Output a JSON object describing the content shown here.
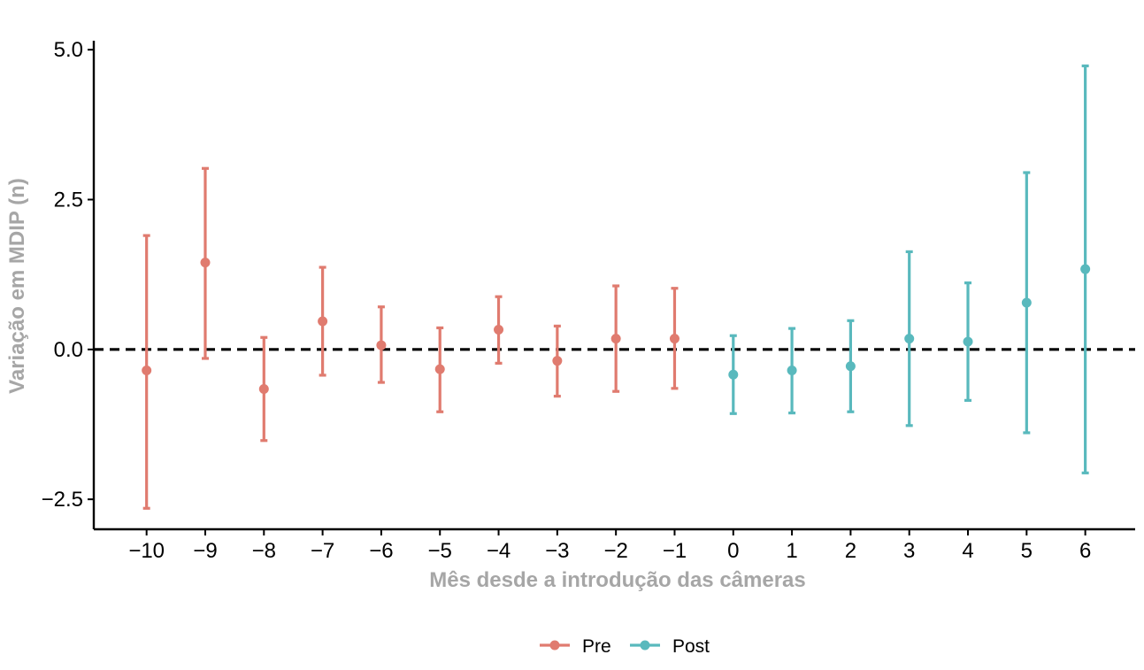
{
  "chart_data": {
    "type": "errorbar",
    "xlabel": "Mês desde a introdução das câmeras",
    "ylabel": "Variação em MDIP (n)",
    "xlim": [
      -10.9,
      6.85
    ],
    "ylim": [
      -3.0,
      5.15
    ],
    "x_ticks": [
      -10,
      -9,
      -8,
      -7,
      -6,
      -5,
      -4,
      -3,
      -2,
      -1,
      0,
      1,
      2,
      3,
      4,
      5,
      6
    ],
    "x_tick_labels": [
      "−10",
      "−9",
      "−8",
      "−7",
      "−6",
      "−5",
      "−4",
      "−3",
      "−2",
      "−1",
      "0",
      "1",
      "2",
      "3",
      "4",
      "5",
      "6"
    ],
    "y_ticks": [
      5.0,
      2.5,
      0.0,
      -2.5
    ],
    "y_tick_labels": [
      "5.0",
      "2.5",
      "0.0",
      "−2.5"
    ],
    "reference_line": {
      "y": 0,
      "style": "dashed",
      "color": "#000000"
    },
    "legend_position": "bottom",
    "grid": false,
    "series": [
      {
        "name": "Pre",
        "color": "#e07b6f",
        "points": [
          {
            "x": -10,
            "y": -0.35,
            "low": -2.65,
            "high": 1.9
          },
          {
            "x": -9,
            "y": 1.45,
            "low": -0.15,
            "high": 3.02
          },
          {
            "x": -8,
            "y": -0.66,
            "low": -1.52,
            "high": 0.2
          },
          {
            "x": -7,
            "y": 0.47,
            "low": -0.43,
            "high": 1.37
          },
          {
            "x": -6,
            "y": 0.07,
            "low": -0.55,
            "high": 0.71
          },
          {
            "x": -5,
            "y": -0.33,
            "low": -1.04,
            "high": 0.36
          },
          {
            "x": -4,
            "y": 0.33,
            "low": -0.23,
            "high": 0.88
          },
          {
            "x": -3,
            "y": -0.19,
            "low": -0.78,
            "high": 0.39
          },
          {
            "x": -2,
            "y": 0.18,
            "low": -0.7,
            "high": 1.06
          },
          {
            "x": -1,
            "y": 0.18,
            "low": -0.65,
            "high": 1.02
          }
        ]
      },
      {
        "name": "Post",
        "color": "#59b9bd",
        "points": [
          {
            "x": 0,
            "y": -0.42,
            "low": -1.07,
            "high": 0.23
          },
          {
            "x": 1,
            "y": -0.35,
            "low": -1.06,
            "high": 0.35
          },
          {
            "x": 2,
            "y": -0.28,
            "low": -1.04,
            "high": 0.48
          },
          {
            "x": 3,
            "y": 0.18,
            "low": -1.27,
            "high": 1.63
          },
          {
            "x": 4,
            "y": 0.13,
            "low": -0.85,
            "high": 1.11
          },
          {
            "x": 5,
            "y": 0.78,
            "low": -1.39,
            "high": 2.95
          },
          {
            "x": 6,
            "y": 1.34,
            "low": -2.06,
            "high": 4.73
          }
        ]
      }
    ]
  }
}
